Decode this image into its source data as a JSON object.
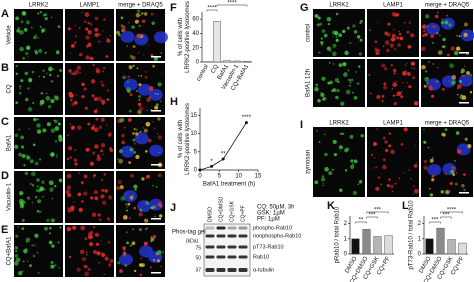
{
  "panel_letters": [
    "A",
    "B",
    "C",
    "D",
    "E",
    "F",
    "G",
    "H",
    "I",
    "J",
    "K",
    "L"
  ],
  "micrograph_grid": {
    "columns": [
      "LRRK2",
      "LAMP1",
      "merge + DRAQ5"
    ],
    "rows": [
      "Vehicle",
      "CQ",
      "BafA1",
      "Vacuolin-1",
      "CQ+BafA1"
    ]
  },
  "panel_g": {
    "columns": [
      "LRRK2",
      "LAMP1",
      "merge + DRAQ5"
    ],
    "rows": [
      "control",
      "BafA1 12h"
    ]
  },
  "panel_i": {
    "columns": [
      "LRRK2",
      "LAMP1",
      "merge + DRAQ5"
    ],
    "rows": [
      "zymosan"
    ]
  },
  "chart_data": [
    {
      "type": "bar",
      "ylabel": [
        "% of cells with",
        "LRRK2-positive lysosomes"
      ],
      "categories": [
        "control",
        "CQ",
        "BafA1",
        "Vacuolin-1",
        "CQ+BafA1"
      ],
      "values": [
        0.5,
        57,
        2,
        1.5,
        1
      ],
      "color": "#e6e6e6",
      "ylim": [
        0,
        70
      ],
      "yticks": [
        0,
        20,
        40,
        60
      ],
      "significance": [
        "****",
        "****"
      ]
    },
    {
      "type": "line",
      "ylabel": [
        "% of cells with",
        "LRRK2-positive lysosomes"
      ],
      "xlabel": "BafA1 treatment (h)",
      "x": [
        0,
        3,
        6,
        12
      ],
      "values": [
        0,
        1,
        3,
        13
      ],
      "color": "#111111",
      "xlim": [
        0,
        15
      ],
      "xticks": [
        0,
        5,
        10,
        15
      ],
      "ylim": [
        0,
        17
      ],
      "yticks": [
        0,
        5,
        10,
        15
      ],
      "significance": [
        "*",
        "**",
        "****"
      ]
    },
    {
      "type": "bar",
      "ylabel": [
        "pRab10 / total Rab10"
      ],
      "categories": [
        "DMSO",
        "CQ+DMSO",
        "CQ+GSK",
        "CQ+PF"
      ],
      "values": [
        1,
        1.62,
        1.15,
        1.2
      ],
      "colors": [
        "#111111",
        "#8a8a8a",
        "#b5b5b5",
        "#dcdcdc"
      ],
      "ylim": [
        0,
        2.5
      ],
      "yticks": [
        0,
        1,
        2
      ],
      "significance": [
        "**",
        "***",
        "***"
      ]
    },
    {
      "type": "bar",
      "ylabel": [
        "pT73-Rab10 / total Rab10"
      ],
      "categories": [
        "DMSO",
        "CQ+DMSO",
        "CQ+GSK",
        "CQ+PF"
      ],
      "values": [
        1,
        1.7,
        0.95,
        0.72
      ],
      "colors": [
        "#111111",
        "#8a8a8a",
        "#b5b5b5",
        "#dcdcdc"
      ],
      "ylim": [
        0,
        2.5
      ],
      "yticks": [
        0,
        1,
        2
      ],
      "significance": [
        "***",
        "***",
        "****"
      ]
    }
  ],
  "blot": {
    "conditions": [
      "CQ: 50µM, 3h",
      "GSK: 1µM",
      "PF: 1µM"
    ],
    "lanes": [
      "DMSO",
      "CQ+DMSO",
      "CQ+GSK",
      "CQ+PF"
    ],
    "gel_label": "Phos-tag gel",
    "bands": [
      "phospho-Rab10",
      "nonphospho-Rab10",
      "pT73-Rab10",
      "Rab10",
      "α-tubulin"
    ],
    "kda_label": "(kDa)",
    "markers": [
      75,
      50,
      37
    ]
  }
}
